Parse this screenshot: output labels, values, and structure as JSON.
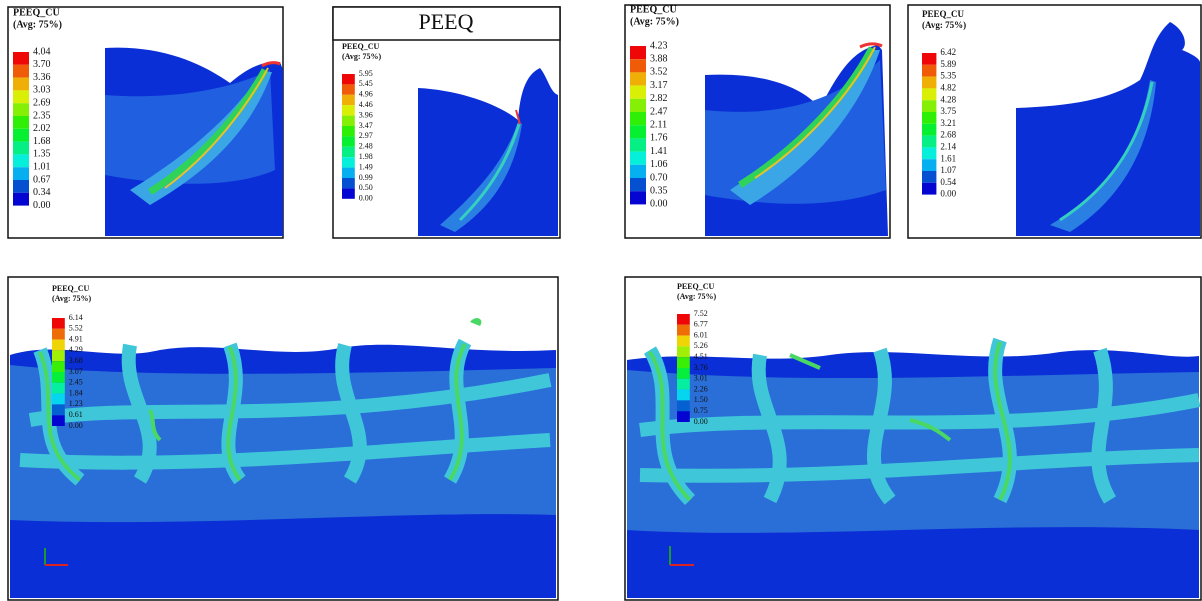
{
  "panels": [
    {
      "title": "PEEQ_CU",
      "subtitle": "(Avg: 75%)",
      "values": [
        "4.04",
        "3.70",
        "3.36",
        "3.03",
        "2.69",
        "2.35",
        "2.02",
        "1.68",
        "1.35",
        "1.01",
        "0.67",
        "0.34",
        "0.00"
      ]
    },
    {
      "header": "PEEQ",
      "title": "PEEQ_CU",
      "subtitle": "(Avg: 75%)",
      "values": [
        "5.95",
        "5.45",
        "4.96",
        "4.46",
        "3.96",
        "3.47",
        "2.97",
        "2.48",
        "1.98",
        "1.49",
        "0.99",
        "0.50",
        "0.00"
      ]
    },
    {
      "title": "PEEQ_CU",
      "subtitle": "(Avg: 75%)",
      "values": [
        "4.23",
        "3.88",
        "3.52",
        "3.17",
        "2.82",
        "2.47",
        "2.11",
        "1.76",
        "1.41",
        "1.06",
        "0.70",
        "0.35",
        "0.00"
      ]
    },
    {
      "title": "PEEQ_CU",
      "subtitle": "(Avg: 75%)",
      "values": [
        "6.42",
        "5.89",
        "5.35",
        "4.82",
        "4.28",
        "3.75",
        "3.21",
        "2.68",
        "2.14",
        "1.61",
        "1.07",
        "0.54",
        "0.00"
      ]
    },
    {
      "title": "PEEQ_CU",
      "subtitle": "(Avg: 75%)",
      "values": [
        "6.14",
        "5.52",
        "4.91",
        "4.29",
        "3.68",
        "3.07",
        "2.45",
        "1.84",
        "1.23",
        "0.61",
        "0.00"
      ]
    },
    {
      "title": "PEEQ_CU",
      "subtitle": "(Avg: 75%)",
      "values": [
        "7.52",
        "6.77",
        "6.01",
        "5.26",
        "4.51",
        "3.76",
        "3.01",
        "2.26",
        "1.50",
        "0.75",
        "0.00"
      ]
    }
  ]
}
